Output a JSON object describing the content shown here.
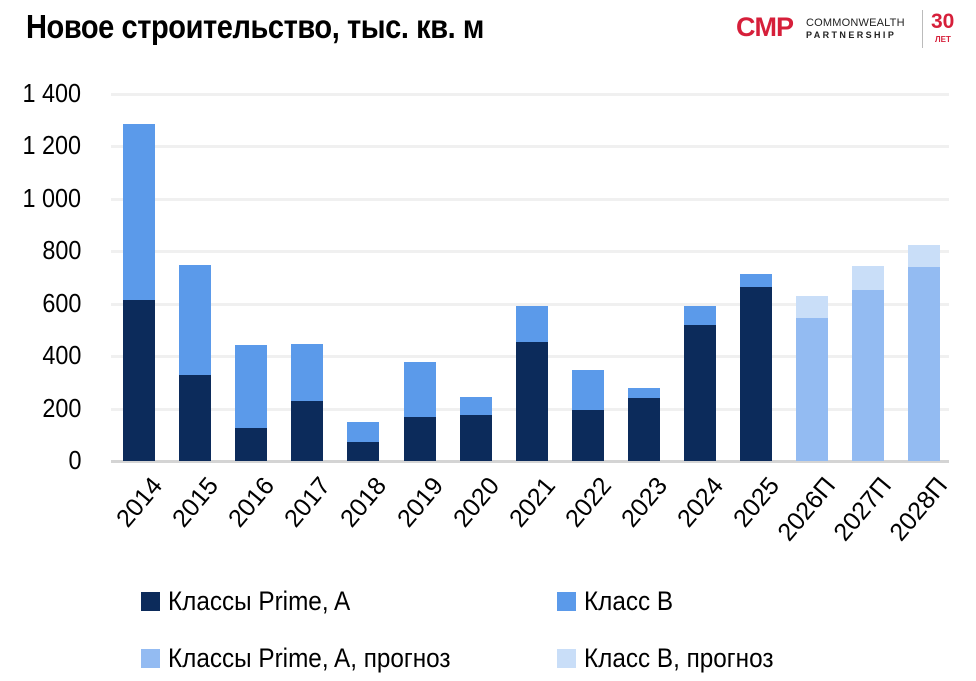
{
  "header": {
    "title": "Новое строительство, тыс. кв. м"
  },
  "logo": {
    "mark": "CMP",
    "line1": "COMMONWEALTH",
    "line2": "PARTNERSHIP",
    "anniversary_number": "30",
    "anniversary_label": "ЛЕТ",
    "brand_color": "#d61f3a"
  },
  "colors": {
    "prime_a": "#0c2b5b",
    "class_b": "#5b9aea",
    "prime_a_forecast": "#93bbf2",
    "class_b_forecast": "#c9def8"
  },
  "axis": {
    "y_ticks": [
      "0",
      "200",
      "400",
      "600",
      "800",
      "1 000",
      "1 200",
      "1 400"
    ]
  },
  "legend": {
    "items": [
      {
        "label": "Классы Prime, A",
        "color": "#0c2b5b"
      },
      {
        "label": "Класс B",
        "color": "#5b9aea"
      },
      {
        "label": "Классы Prime, A, прогноз",
        "color": "#93bbf2"
      },
      {
        "label": "Класс B, прогноз",
        "color": "#c9def8"
      }
    ]
  },
  "chart_data": {
    "type": "bar",
    "stacked": true,
    "title": "Новое строительство, тыс. кв. м",
    "xlabel": "",
    "ylabel": "",
    "ylim": [
      0,
      1400
    ],
    "yticks": [
      0,
      200,
      400,
      600,
      800,
      1000,
      1200,
      1400
    ],
    "grid": true,
    "legend_position": "bottom",
    "categories": [
      "2014",
      "2015",
      "2016",
      "2017",
      "2018",
      "2019",
      "2020",
      "2021",
      "2022",
      "2023",
      "2024",
      "2025",
      "2026П",
      "2027П",
      "2028П"
    ],
    "series": [
      {
        "name": "Классы Prime, A",
        "values": [
          614,
          328,
          126,
          229,
          72,
          168,
          175,
          454,
          195,
          240,
          519,
          664,
          null,
          null,
          null
        ]
      },
      {
        "name": "Класс B",
        "values": [
          672,
          420,
          317,
          217,
          77,
          210,
          69,
          137,
          152,
          39,
          72,
          49,
          null,
          null,
          null
        ]
      },
      {
        "name": "Классы Prime, A, прогноз",
        "values": [
          null,
          null,
          null,
          null,
          null,
          null,
          null,
          null,
          null,
          null,
          null,
          null,
          546,
          652,
          740
        ]
      },
      {
        "name": "Класс B, прогноз",
        "values": [
          null,
          null,
          null,
          null,
          null,
          null,
          null,
          null,
          null,
          null,
          null,
          null,
          84,
          92,
          84
        ]
      }
    ]
  }
}
